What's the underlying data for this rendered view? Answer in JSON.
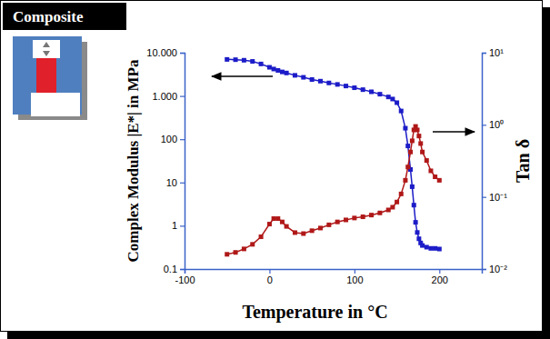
{
  "chart_data": {
    "type": "line",
    "title": "Composite",
    "xlabel": "Temperature in °C",
    "ylabel": "Complex Modulus |E*| in MPa",
    "y2label": "Tan δ",
    "log": "y",
    "xlim": [
      -100,
      250
    ],
    "xticks": [
      -100,
      0,
      100,
      200
    ],
    "ylim": [
      0.1,
      10000
    ],
    "yticks": [
      0.1,
      1,
      10,
      100,
      {
        "value": 1000,
        "label": "1.000"
      },
      {
        "value": 10000,
        "label": "10.000"
      }
    ],
    "y2lim": [
      0.01,
      10
    ],
    "y2ticks": [
      {
        "value": 0.01,
        "label": "10⁻²"
      },
      {
        "value": 0.1,
        "label": "10⁻¹"
      },
      {
        "value": 1,
        "label": "10⁰"
      },
      {
        "value": 10,
        "label": "10¹"
      }
    ],
    "x": [
      -50,
      -40,
      -30,
      -20,
      -10,
      0,
      5,
      10,
      15,
      20,
      30,
      40,
      50,
      60,
      70,
      80,
      90,
      100,
      110,
      120,
      130,
      140,
      145,
      150,
      155,
      160,
      163,
      166,
      168,
      170,
      172,
      174,
      176,
      178,
      180,
      185,
      190,
      195,
      200
    ],
    "series": [
      {
        "color": "#1c1cc8",
        "marker": "square",
        "line_style": "solid",
        "values": [
          7000,
          6900,
          6700,
          6300,
          5500,
          4600,
          4200,
          3900,
          3600,
          3400,
          3000,
          2700,
          2400,
          2200,
          2000,
          1850,
          1700,
          1550,
          1400,
          1250,
          1100,
          950,
          850,
          700,
          450,
          180,
          70,
          20,
          8,
          3,
          1.2,
          0.7,
          0.5,
          0.4,
          0.35,
          0.32,
          0.3,
          0.3,
          0.29
        ]
      },
      {
        "color": "#b01818",
        "marker": "square",
        "line_style": "solid",
        "axis": "y2",
        "values": [
          0.016,
          0.017,
          0.019,
          0.022,
          0.028,
          0.042,
          0.05,
          0.05,
          0.045,
          0.039,
          0.032,
          0.031,
          0.034,
          0.037,
          0.041,
          0.045,
          0.048,
          0.051,
          0.053,
          0.056,
          0.06,
          0.066,
          0.072,
          0.085,
          0.11,
          0.17,
          0.26,
          0.42,
          0.6,
          0.85,
          0.95,
          0.85,
          0.7,
          0.55,
          0.42,
          0.32,
          0.23,
          0.19,
          0.17
        ]
      }
    ]
  }
}
